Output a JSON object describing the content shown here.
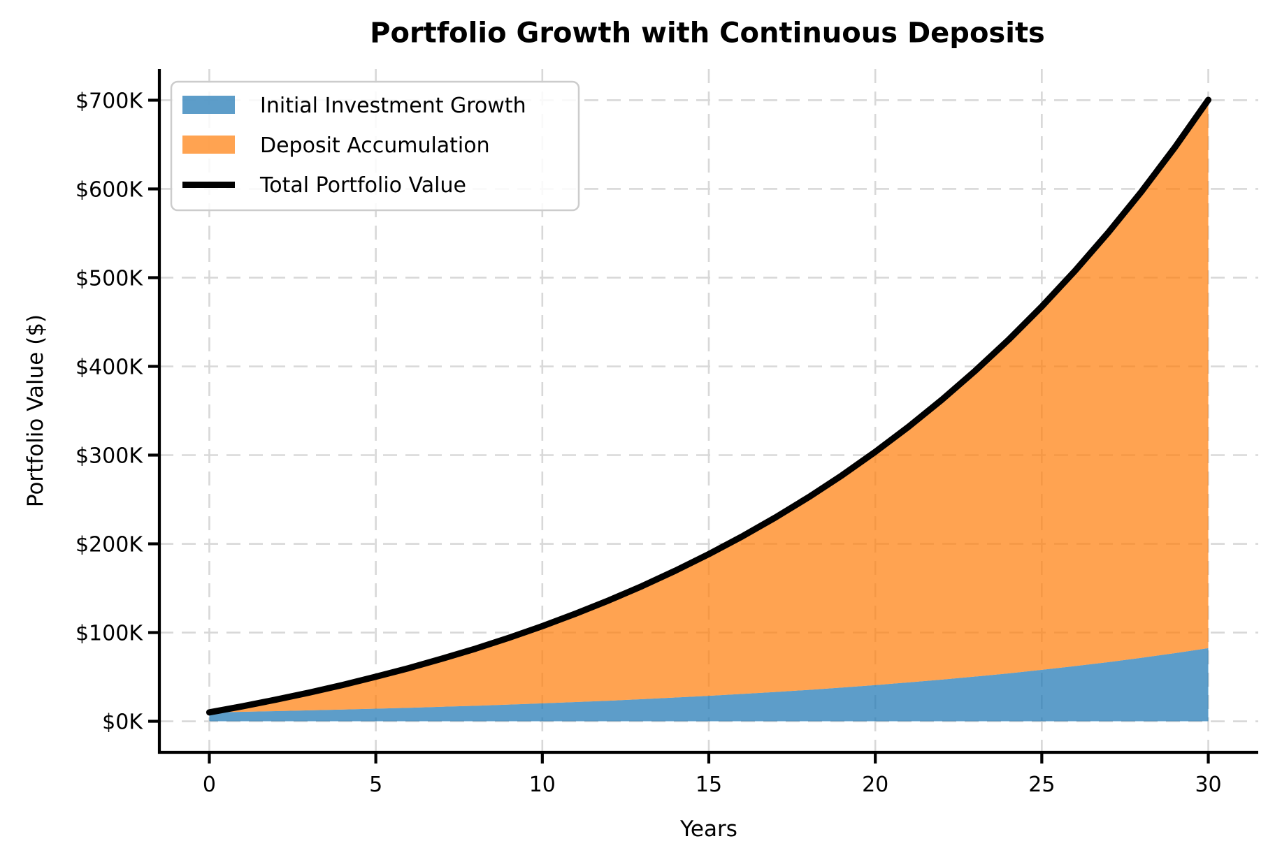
{
  "title": "Portfolio Growth with Continuous Deposits",
  "chart_data": {
    "type": "area",
    "stacked": true,
    "title": "Portfolio Growth with Continuous Deposits",
    "xlabel": "Years",
    "ylabel": "Portfolio Value ($)",
    "values_unit": "USD",
    "grid": true,
    "grid_color": "#d8d8d8",
    "legend_position": "upper left",
    "xlim": [
      -1.5,
      31.5
    ],
    "ylim": [
      -35000,
      735000
    ],
    "x": [
      0,
      1,
      2,
      3,
      4,
      5,
      6,
      7,
      8,
      9,
      10,
      11,
      12,
      13,
      14,
      15,
      16,
      17,
      18,
      19,
      20,
      21,
      22,
      23,
      24,
      25,
      26,
      27,
      28,
      29,
      30
    ],
    "series": [
      {
        "name": "Initial Investment Growth",
        "kind": "area",
        "color": "#1f77b4",
        "fill_opacity": 0.72,
        "values": [
          10000,
          10700,
          11500,
          12300,
          13200,
          14200,
          15200,
          16400,
          17500,
          18800,
          20200,
          21700,
          23200,
          24900,
          26800,
          28700,
          30800,
          33000,
          35400,
          38000,
          40800,
          43800,
          47000,
          50400,
          54000,
          58000,
          62200,
          66700,
          71600,
          76800,
          82400
        ]
      },
      {
        "name": "Deposit Accumulation",
        "kind": "area",
        "color": "#ff7f0e",
        "fill_opacity": 0.72,
        "values": [
          0,
          6200,
          12900,
          20000,
          27700,
          36000,
          44800,
          54300,
          64400,
          75300,
          87000,
          99600,
          113100,
          127500,
          143000,
          159700,
          177500,
          196700,
          217200,
          239200,
          262900,
          288200,
          315400,
          344600,
          375900,
          409500,
          445600,
          484300,
          525700,
          570200,
          618000
        ]
      },
      {
        "name": "Total Portfolio Value",
        "kind": "line",
        "color": "#000000",
        "line_width": 9,
        "values": [
          10000,
          16900,
          24400,
          32300,
          40900,
          50200,
          60000,
          70700,
          81900,
          94100,
          107200,
          121300,
          136300,
          152400,
          169800,
          188400,
          208300,
          229700,
          252600,
          277200,
          303700,
          332000,
          362400,
          395000,
          429900,
          467500,
          507800,
          551000,
          597300,
          647000,
          700400
        ]
      }
    ],
    "x_ticks": [
      {
        "value": 0,
        "label": "0"
      },
      {
        "value": 5,
        "label": "5"
      },
      {
        "value": 10,
        "label": "10"
      },
      {
        "value": 15,
        "label": "15"
      },
      {
        "value": 20,
        "label": "20"
      },
      {
        "value": 25,
        "label": "25"
      },
      {
        "value": 30,
        "label": "30"
      }
    ],
    "y_ticks": [
      {
        "value": 0,
        "label": "$0K"
      },
      {
        "value": 100000,
        "label": "$100K"
      },
      {
        "value": 200000,
        "label": "$200K"
      },
      {
        "value": 300000,
        "label": "$300K"
      },
      {
        "value": 400000,
        "label": "$400K"
      },
      {
        "value": 500000,
        "label": "$500K"
      },
      {
        "value": 600000,
        "label": "$600K"
      },
      {
        "value": 700000,
        "label": "$700K"
      }
    ]
  },
  "colors": {
    "initial_investment_fill": "#1f77b4",
    "deposit_fill": "#ff7f0e",
    "total_line": "#000000",
    "grid": "#d8d8d8",
    "legend_border": "#cccccc",
    "background": "#ffffff",
    "text": "#000000"
  }
}
